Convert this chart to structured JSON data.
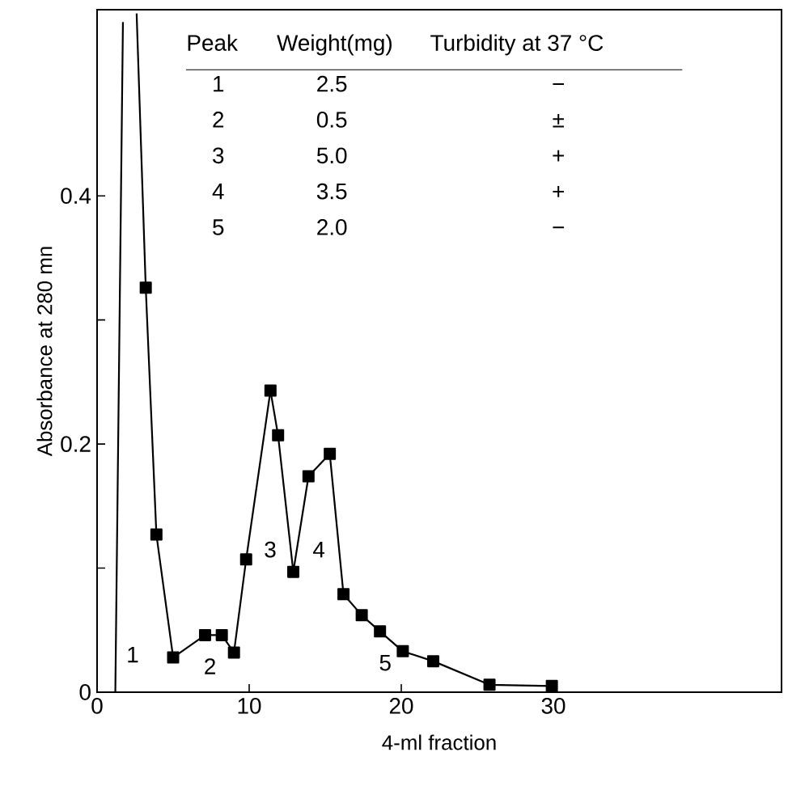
{
  "chart_data": {
    "type": "line",
    "xlabel": "4-ml fraction",
    "ylabel": "Absorbance at 280 mn",
    "xlim": [
      0,
      45
    ],
    "ylim": [
      0,
      0.55
    ],
    "xticks": [
      0,
      10,
      20,
      30
    ],
    "yticks": [
      0,
      {
        "value": 0.1,
        "label": null
      },
      0.2,
      {
        "value": 0.3,
        "label": null
      },
      0.4
    ],
    "grid": false,
    "line_style": "solid",
    "series": [
      {
        "color": "#000000",
        "marker": "none",
        "x": [
          1.2,
          1.7,
          2.1,
          2.6,
          3.2
        ],
        "values": [
          0,
          0.54,
          null,
          0.547,
          0.326
        ]
      },
      {
        "color": "#000000",
        "marker": "square",
        "x": [
          3.2,
          3.9,
          5.0,
          7.1,
          8.2,
          9.0,
          9.8,
          11.4,
          11.9,
          12.9,
          13.9,
          15.3,
          16.2,
          17.4,
          18.6,
          20.1,
          22.1,
          25.8,
          29.9
        ],
        "values": [
          0.326,
          0.127,
          0.028,
          0.046,
          0.046,
          0.032,
          0.107,
          0.243,
          0.207,
          0.097,
          0.174,
          0.192,
          0.079,
          0.062,
          0.049,
          0.033,
          0.025,
          0.006,
          0.005
        ]
      }
    ],
    "annotations": [
      "1",
      "2",
      "3",
      "4",
      "5",
      "Peak",
      "Weight(mg)",
      "Turbidity at 37 °C",
      "1",
      "2.5",
      "−",
      "2",
      "0.5",
      "±",
      "3",
      "5.0",
      "+",
      "4",
      "3.5",
      "+",
      "5",
      "2.0",
      "−"
    ]
  }
}
